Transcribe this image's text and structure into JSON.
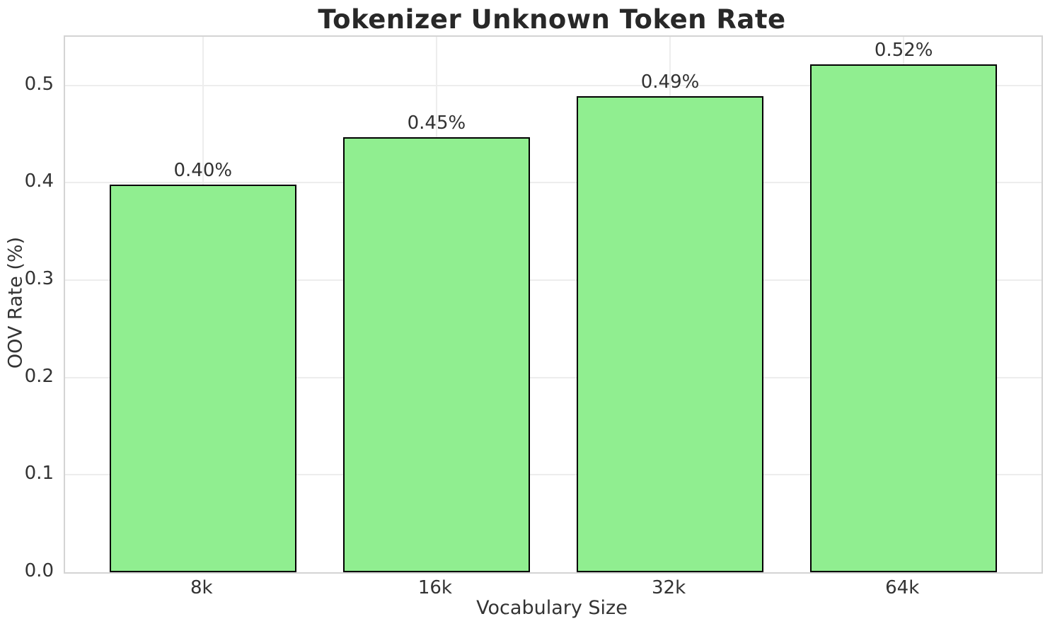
{
  "chart_data": {
    "type": "bar",
    "title": "Tokenizer Unknown Token Rate",
    "xlabel": "Vocabulary Size",
    "ylabel": "OOV Rate (%)",
    "categories": [
      "8k",
      "16k",
      "32k",
      "64k"
    ],
    "values": [
      0.398,
      0.447,
      0.489,
      0.522
    ],
    "bar_labels": [
      "0.40%",
      "0.45%",
      "0.49%",
      "0.52%"
    ],
    "yticks": [
      0,
      0.1,
      0.2,
      0.3,
      0.4,
      0.5
    ],
    "ytick_labels": [
      "0.0",
      "0.1",
      "0.2",
      "0.3",
      "0.4",
      "0.5"
    ],
    "ylim": [
      0,
      0.55
    ],
    "grid": true,
    "legend_position": "none",
    "bar_color": "#90EE90",
    "bar_edge_color": "#000000",
    "background_color": "#ffffff"
  }
}
